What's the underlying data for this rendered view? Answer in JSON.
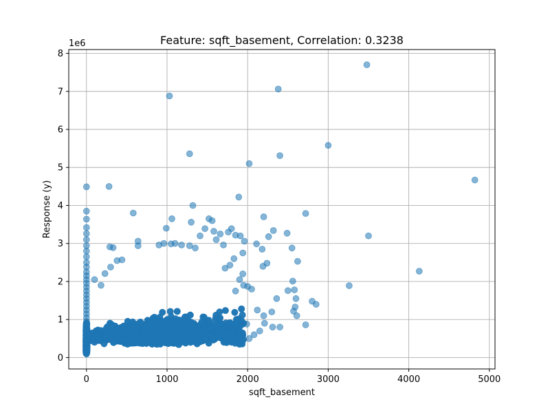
{
  "chart_data": {
    "type": "scatter",
    "title": "Feature: sqft_basement, Correlation: 0.3238",
    "xlabel": "sqft_basement",
    "ylabel": "Response (y)",
    "y_offset_label": "1e6",
    "y_scale": 1000000,
    "xlim": [
      -220,
      5070
    ],
    "ylim": [
      -300000,
      8100000
    ],
    "x_ticks": [
      0,
      1000,
      2000,
      3000,
      4000,
      5000
    ],
    "x_tick_labels": [
      "0",
      "1000",
      "2000",
      "3000",
      "4000",
      "5000"
    ],
    "y_ticks": [
      0,
      1000000,
      2000000,
      3000000,
      4000000,
      5000000,
      6000000,
      7000000,
      8000000
    ],
    "y_tick_labels": [
      "0",
      "1",
      "2",
      "3",
      "4",
      "5",
      "6",
      "7",
      "8"
    ],
    "grid": true,
    "marker_color": "#1f77b4",
    "marker_alpha": 0.55,
    "series": [
      {
        "points": [
          [
            0,
            4490000
          ],
          [
            0,
            3850000
          ],
          [
            0,
            3640000
          ],
          [
            0,
            3420000
          ],
          [
            0,
            3260000
          ],
          [
            0,
            3100000
          ],
          [
            0,
            2940000
          ],
          [
            0,
            2800000
          ],
          [
            0,
            2650000
          ],
          [
            0,
            2500000
          ],
          [
            0,
            2380000
          ],
          [
            0,
            2250000
          ],
          [
            0,
            2150000
          ],
          [
            0,
            2050000
          ],
          [
            0,
            1950000
          ],
          [
            0,
            1850000
          ],
          [
            0,
            1750000
          ],
          [
            0,
            1650000
          ],
          [
            0,
            1550000
          ],
          [
            0,
            1450000
          ],
          [
            0,
            1350000
          ],
          [
            0,
            1250000
          ],
          [
            0,
            1150000
          ],
          [
            0,
            1050000
          ],
          [
            0,
            950000
          ],
          [
            0,
            850000
          ],
          [
            0,
            750000
          ],
          [
            0,
            650000
          ],
          [
            0,
            550000
          ],
          [
            0,
            450000
          ],
          [
            0,
            350000
          ],
          [
            0,
            250000
          ],
          [
            0,
            150000
          ],
          [
            280,
            4500000
          ],
          [
            580,
            3800000
          ],
          [
            1030,
            6880000
          ],
          [
            1280,
            5360000
          ],
          [
            1320,
            4000000
          ],
          [
            1300,
            3560000
          ],
          [
            1060,
            3650000
          ],
          [
            990,
            3400000
          ],
          [
            640,
            3060000
          ],
          [
            290,
            2910000
          ],
          [
            330,
            2890000
          ],
          [
            440,
            2570000
          ],
          [
            380,
            2550000
          ],
          [
            300,
            2380000
          ],
          [
            230,
            2210000
          ],
          [
            180,
            1900000
          ],
          [
            100,
            2050000
          ],
          [
            640,
            2940000
          ],
          [
            900,
            2960000
          ],
          [
            960,
            3000000
          ],
          [
            1050,
            2990000
          ],
          [
            1100,
            3000000
          ],
          [
            1180,
            2960000
          ],
          [
            1280,
            2940000
          ],
          [
            1350,
            2880000
          ],
          [
            1410,
            3200000
          ],
          [
            1470,
            3390000
          ],
          [
            1520,
            3650000
          ],
          [
            1560,
            3600000
          ],
          [
            1580,
            3320000
          ],
          [
            1610,
            3100000
          ],
          [
            1660,
            3250000
          ],
          [
            1700,
            2960000
          ],
          [
            1760,
            3300000
          ],
          [
            1800,
            3390000
          ],
          [
            1850,
            3220000
          ],
          [
            1890,
            4220000
          ],
          [
            1910,
            3200000
          ],
          [
            1960,
            3060000
          ],
          [
            1940,
            2750000
          ],
          [
            2020,
            5100000
          ],
          [
            2380,
            7060000
          ],
          [
            2400,
            5310000
          ],
          [
            2200,
            3700000
          ],
          [
            2320,
            3340000
          ],
          [
            2260,
            3180000
          ],
          [
            2180,
            2850000
          ],
          [
            2110,
            2990000
          ],
          [
            2240,
            2480000
          ],
          [
            2190,
            2400000
          ],
          [
            2490,
            3270000
          ],
          [
            2550,
            2880000
          ],
          [
            2620,
            2530000
          ],
          [
            2720,
            3790000
          ],
          [
            2560,
            2010000
          ],
          [
            2500,
            1760000
          ],
          [
            2580,
            1780000
          ],
          [
            2600,
            1550000
          ],
          [
            2590,
            1330000
          ],
          [
            2570,
            1220000
          ],
          [
            2610,
            1100000
          ],
          [
            2720,
            860000
          ],
          [
            2800,
            1480000
          ],
          [
            2850,
            1400000
          ],
          [
            2360,
            1550000
          ],
          [
            2400,
            800000
          ],
          [
            2310,
            800000
          ],
          [
            2210,
            900000
          ],
          [
            2200,
            1100000
          ],
          [
            2300,
            1200000
          ],
          [
            2120,
            1250000
          ],
          [
            2050,
            1800000
          ],
          [
            1950,
            1900000
          ],
          [
            2000,
            1870000
          ],
          [
            1850,
            1750000
          ],
          [
            1900,
            2050000
          ],
          [
            1940,
            2200000
          ],
          [
            1780,
            2430000
          ],
          [
            1830,
            2600000
          ],
          [
            1720,
            2350000
          ],
          [
            3000,
            5580000
          ],
          [
            3480,
            7700000
          ],
          [
            3500,
            3200000
          ],
          [
            3260,
            1890000
          ],
          [
            4130,
            2270000
          ],
          [
            4820,
            4670000
          ],
          [
            2020,
            500000
          ],
          [
            2080,
            600000
          ],
          [
            2150,
            700000
          ],
          [
            1990,
            880000
          ]
        ]
      }
    ],
    "cluster": {
      "x_range": [
        30,
        1950
      ],
      "x_peak": 900,
      "y_base": 80000,
      "count": 5200,
      "seed": 7
    }
  }
}
